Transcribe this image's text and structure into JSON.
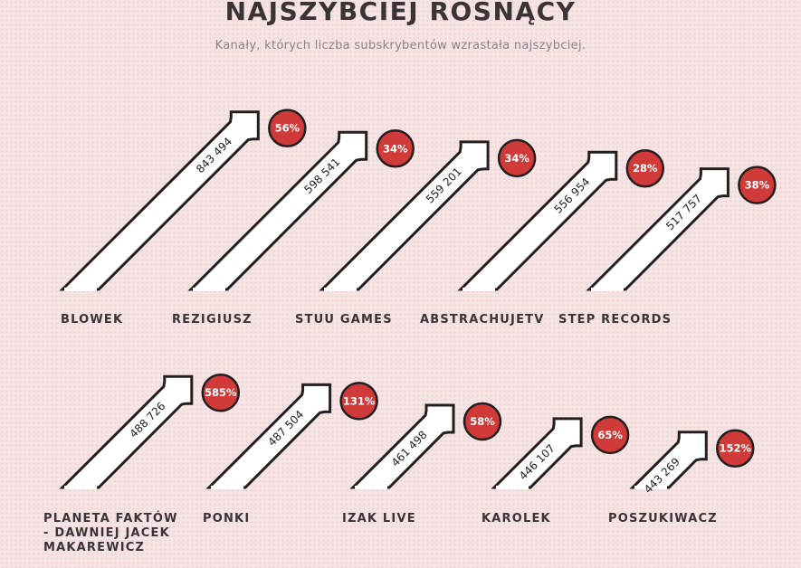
{
  "title": "NAJSZYBCIEJ ROSNĄCY",
  "subtitle": "Kanały, których liczba subskrybentów wzrastała najszybciej.",
  "colors": {
    "arrow_fill": "#ffffff",
    "arrow_stroke": "#231f20",
    "badge": "#d03a38",
    "text": "#3a3435"
  },
  "chart_data": {
    "type": "bar",
    "title": "NAJSZYBCIEJ ROSNĄCY",
    "subtitle": "Kanały, których liczba subskrybentów wzrastała najszybciej.",
    "series": [
      {
        "values": [
          843494,
          598541,
          559201,
          556954,
          517757,
          488726,
          487504,
          461498,
          446107,
          443269
        ]
      }
    ],
    "items": [
      {
        "name": "BLOWEK",
        "value": "843 494",
        "growth": "56%"
      },
      {
        "name": "REZIGIUSZ",
        "value": "598 541",
        "growth": "34%"
      },
      {
        "name": "STUU GAMES",
        "value": "559 201",
        "growth": "34%"
      },
      {
        "name": "ABSTRACHUJETV",
        "value": "556 954",
        "growth": "28%"
      },
      {
        "name": "STEP RECORDS",
        "value": "517 757",
        "growth": "38%"
      },
      {
        "name": "PLANETA FAKTÓW - DAWNIEJ JACEK MAKAREWICZ",
        "value": "488 726",
        "growth": "585%"
      },
      {
        "name": "PONKI",
        "value": "487 504",
        "growth": "131%"
      },
      {
        "name": "IZAK LIVE",
        "value": "461 498",
        "growth": "58%"
      },
      {
        "name": "KAROLEK",
        "value": "446 107",
        "growth": "65%"
      },
      {
        "name": "POSZUKIWACZ",
        "value": "443 269",
        "growth": "152%"
      }
    ]
  }
}
